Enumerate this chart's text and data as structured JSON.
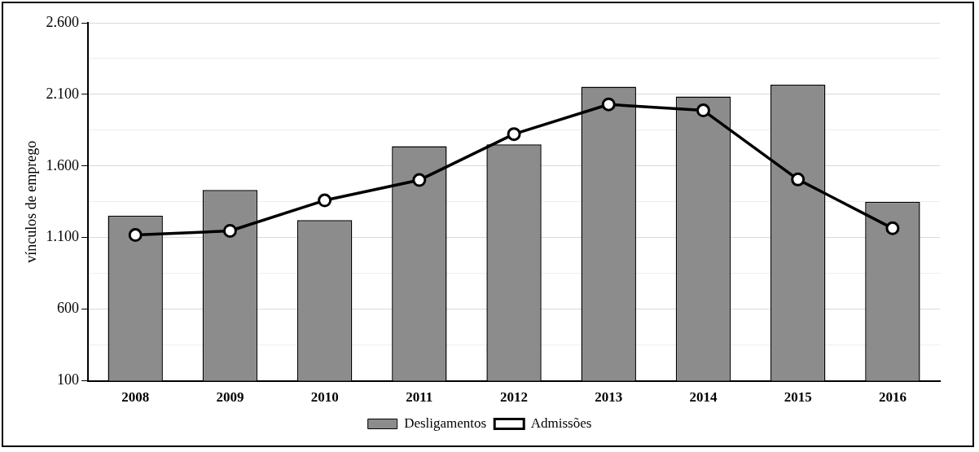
{
  "chart_data": {
    "type": "bar",
    "ylabel": "vínculos de emprego",
    "categories": [
      "2008",
      "2009",
      "2010",
      "2011",
      "2012",
      "2013",
      "2014",
      "2015",
      "2016"
    ],
    "series": [
      {
        "name": "Desligamentos",
        "color": "#8c8c8c",
        "values": [
          1253,
          1433,
          1222,
          1738,
          1751,
          2153,
          2085,
          2168,
          1350
        ]
      },
      {
        "name": "Admissões",
        "type": "line",
        "color": "#000000",
        "values": [
          1118,
          1147,
          1360,
          1502,
          1823,
          2030,
          1988,
          1506,
          1165
        ]
      }
    ],
    "ylim": [
      100,
      2600
    ],
    "yticks": [
      100,
      {
        "value": 350,
        "label": null
      },
      600,
      {
        "value": 850,
        "label": null
      },
      {
        "value": 1100,
        "label": "1.100"
      },
      {
        "value": 1350,
        "label": null
      },
      {
        "value": 1600,
        "label": "1.600"
      },
      {
        "value": 1850,
        "label": null
      },
      {
        "value": 2100,
        "label": "2.100"
      },
      {
        "value": 2350,
        "label": null
      },
      {
        "value": 2600,
        "label": "2.600"
      }
    ],
    "grid": "y",
    "legend": "bottom",
    "marker": "circle",
    "line_style": "solid"
  }
}
